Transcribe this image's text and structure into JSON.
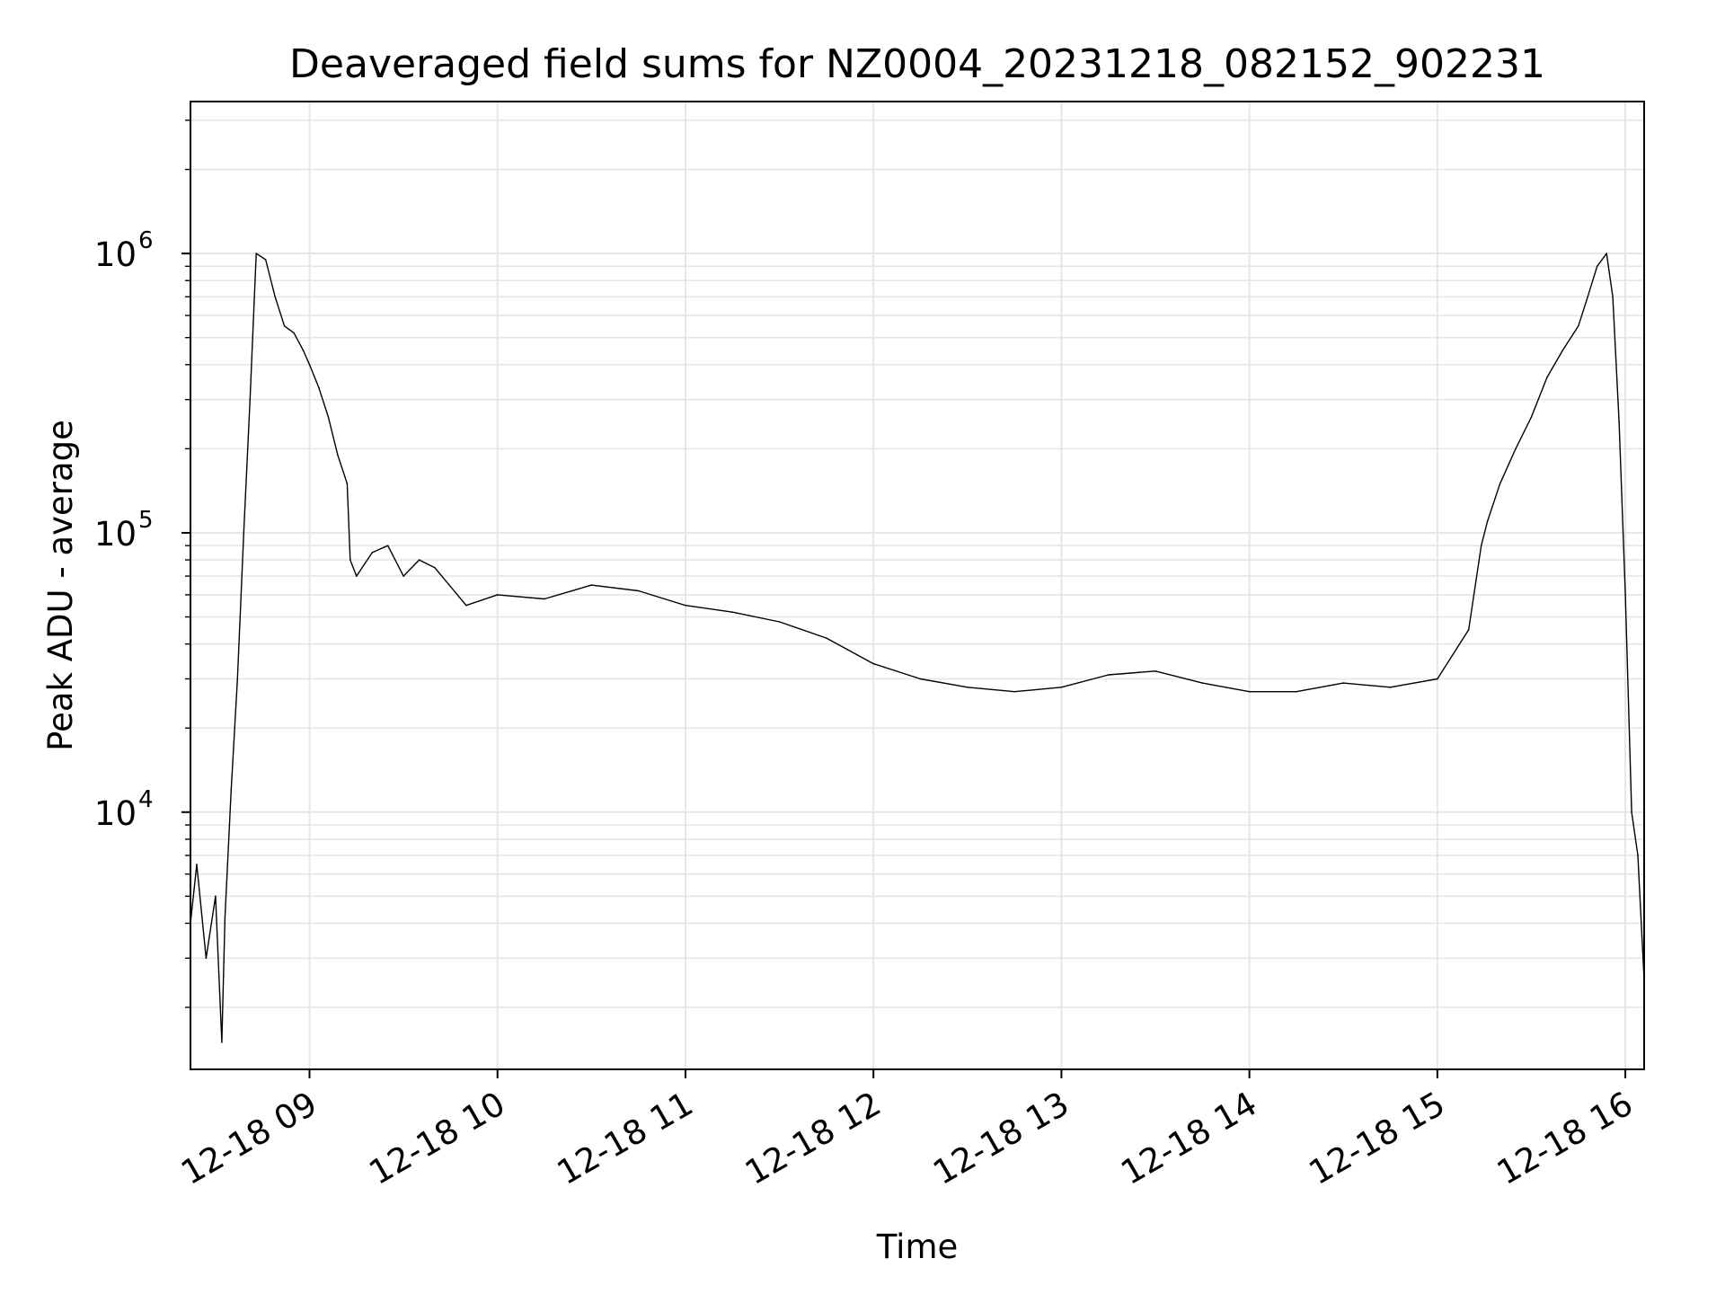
{
  "chart_data": {
    "type": "line",
    "title": "Deaveraged field sums for NZ0004_20231218_082152_902231",
    "xlabel": "Time",
    "ylabel": "Peak ADU - average",
    "yscale": "log",
    "grid": true,
    "line_color": "#000000",
    "grid_color": "#e6e6e6",
    "xlim": [
      "2023-12-18 08:22",
      "2023-12-18 16:06"
    ],
    "ylim": [
      1200,
      3500000
    ],
    "x_ticks": [
      "12-18 09",
      "12-18 10",
      "12-18 11",
      "12-18 12",
      "12-18 13",
      "12-18 14",
      "12-18 15",
      "12-18 16"
    ],
    "y_ticks": [
      {
        "base": "10",
        "exp": "4",
        "value": 10000
      },
      {
        "base": "10",
        "exp": "5",
        "value": 100000
      },
      {
        "base": "10",
        "exp": "6",
        "value": 1000000
      }
    ],
    "series": [
      {
        "x": [
          "2023-12-18 08:22",
          "2023-12-18 08:24",
          "2023-12-18 08:27",
          "2023-12-18 08:30",
          "2023-12-18 08:32",
          "2023-12-18 08:33",
          "2023-12-18 08:35",
          "2023-12-18 08:37",
          "2023-12-18 08:39",
          "2023-12-18 08:41",
          "2023-12-18 08:43",
          "2023-12-18 08:46",
          "2023-12-18 08:49",
          "2023-12-18 08:52",
          "2023-12-18 08:55",
          "2023-12-18 08:58",
          "2023-12-18 09:00",
          "2023-12-18 09:03",
          "2023-12-18 09:06",
          "2023-12-18 09:09",
          "2023-12-18 09:12",
          "2023-12-18 09:13",
          "2023-12-18 09:15",
          "2023-12-18 09:20",
          "2023-12-18 09:25",
          "2023-12-18 09:30",
          "2023-12-18 09:35",
          "2023-12-18 09:40",
          "2023-12-18 09:50",
          "2023-12-18 10:00",
          "2023-12-18 10:15",
          "2023-12-18 10:30",
          "2023-12-18 10:45",
          "2023-12-18 11:00",
          "2023-12-18 11:15",
          "2023-12-18 11:30",
          "2023-12-18 11:45",
          "2023-12-18 12:00",
          "2023-12-18 12:15",
          "2023-12-18 12:30",
          "2023-12-18 12:45",
          "2023-12-18 13:00",
          "2023-12-18 13:15",
          "2023-12-18 13:30",
          "2023-12-18 13:45",
          "2023-12-18 14:00",
          "2023-12-18 14:15",
          "2023-12-18 14:30",
          "2023-12-18 14:45",
          "2023-12-18 15:00",
          "2023-12-18 15:10",
          "2023-12-18 15:14",
          "2023-12-18 15:16",
          "2023-12-18 15:20",
          "2023-12-18 15:25",
          "2023-12-18 15:30",
          "2023-12-18 15:35",
          "2023-12-18 15:40",
          "2023-12-18 15:45",
          "2023-12-18 15:48",
          "2023-12-18 15:51",
          "2023-12-18 15:54",
          "2023-12-18 15:56",
          "2023-12-18 15:58",
          "2023-12-18 16:00",
          "2023-12-18 16:02",
          "2023-12-18 16:04",
          "2023-12-18 16:06"
        ],
        "y": [
          4000,
          6500,
          3000,
          5000,
          1500,
          4200,
          12000,
          30000,
          100000,
          300000,
          1000000,
          950000,
          700000,
          550000,
          520000,
          450000,
          400000,
          330000,
          260000,
          190000,
          150000,
          80000,
          70000,
          85000,
          90000,
          70000,
          80000,
          75000,
          55000,
          60000,
          58000,
          65000,
          62000,
          55000,
          52000,
          48000,
          42000,
          34000,
          30000,
          28000,
          27000,
          28000,
          31000,
          32000,
          29000,
          27000,
          27000,
          29000,
          28000,
          30000,
          45000,
          90000,
          110000,
          150000,
          200000,
          260000,
          360000,
          450000,
          550000,
          700000,
          900000,
          1000000,
          700000,
          250000,
          60000,
          10000,
          7000,
          2500
        ]
      }
    ]
  }
}
